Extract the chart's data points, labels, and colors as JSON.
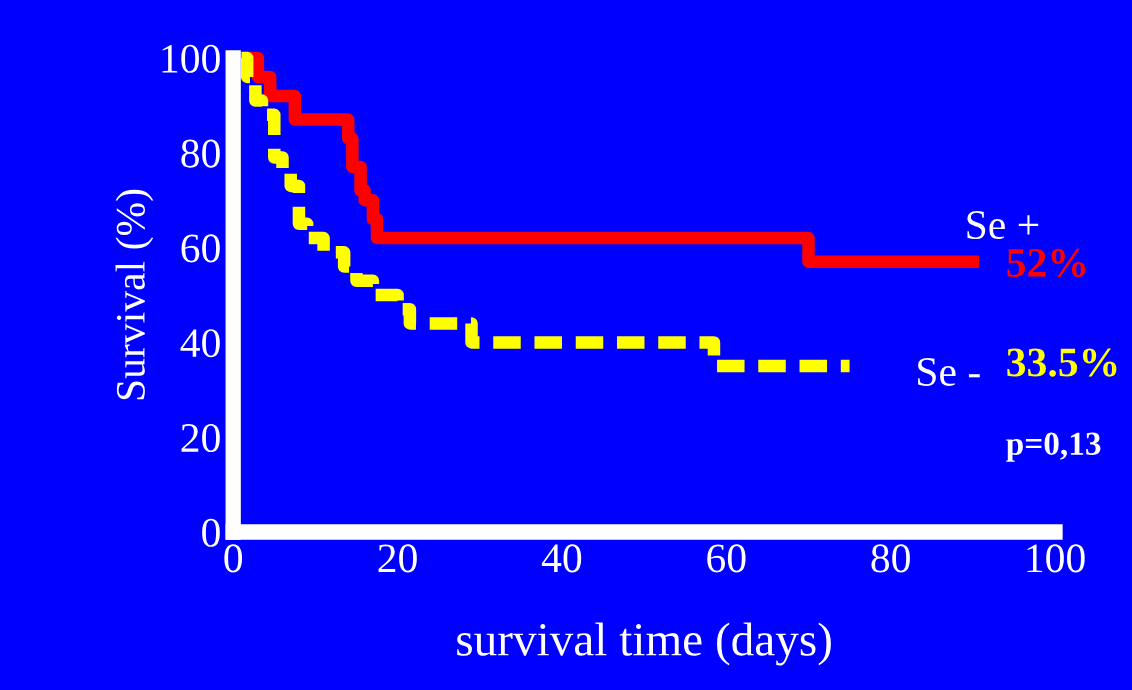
{
  "chart_data": {
    "type": "step",
    "xlabel": "survival time (days)",
    "ylabel": "Survival (%)",
    "xlim": [
      0,
      100
    ],
    "ylim": [
      0,
      100
    ],
    "xticks": [
      0,
      20,
      40,
      60,
      80,
      100
    ],
    "yticks": [
      0,
      20,
      40,
      60,
      80,
      100
    ],
    "grid": false,
    "legend": false,
    "series": [
      {
        "name": "Se +",
        "color": "#ff0000",
        "line_style": "solid",
        "x": [
          2,
          3,
          4.5,
          7.5,
          14,
          14.5,
          15.5,
          16,
          17,
          17.5,
          70,
          90
        ],
        "values": [
          100,
          96,
          92,
          87,
          83,
          77,
          72,
          70,
          66,
          62,
          57,
          57
        ]
      },
      {
        "name": "Se -",
        "color": "#ffff00",
        "line_style": "dashed",
        "x": [
          1,
          1.7,
          2.7,
          3.5,
          5,
          6,
          7,
          8,
          9,
          11,
          13.5,
          15,
          17,
          20,
          21.5,
          29,
          58.5,
          75
        ],
        "values": [
          100,
          96,
          91,
          88,
          79,
          76,
          73,
          65,
          62,
          59,
          56,
          53,
          50,
          47,
          44,
          40,
          35,
          35
        ]
      }
    ],
    "annotations": [
      "52%",
      "33.5%",
      "p=0,13"
    ]
  }
}
